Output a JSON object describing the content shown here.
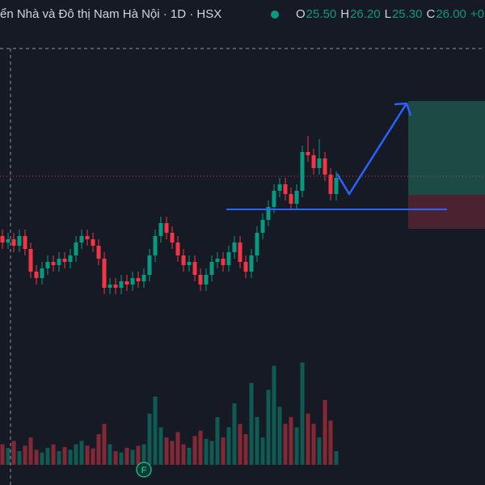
{
  "chart_data": {
    "type": "candlestick",
    "title": "ển Nhà và Đô thị Nam Hà Nội · 1D · HSX",
    "ohlc": [
      {
        "label": "O",
        "value": "25.50"
      },
      {
        "label": "H",
        "value": "26.20"
      },
      {
        "label": "L",
        "value": "25.30"
      },
      {
        "label": "C",
        "value": "26.00"
      }
    ],
    "change": "+0.",
    "up_color": "#089981",
    "down_color": "#f23645",
    "ylim": [
      20.5,
      31.5
    ],
    "volume_lim": [
      0,
      160
    ],
    "open": [
      24.2,
      24.0,
      24.1,
      23.9,
      24.2,
      23.8,
      23.1,
      22.9,
      23.2,
      23.4,
      23.3,
      23.5,
      23.4,
      23.6,
      24.0,
      24.2,
      24.1,
      23.9,
      23.5,
      22.6,
      22.7,
      22.6,
      22.8,
      22.7,
      22.9,
      22.8,
      23.0,
      23.6,
      24.2,
      24.6,
      24.3,
      24.0,
      23.6,
      23.3,
      23.4,
      23.0,
      22.7,
      23.0,
      23.4,
      23.5,
      23.3,
      23.7,
      24.0,
      23.4,
      23.1,
      23.6,
      24.3,
      24.7,
      25.1,
      25.6,
      25.8,
      25.5,
      25.2,
      25.6,
      26.8,
      26.7,
      26.3,
      26.6,
      26.1,
      25.5
    ],
    "high": [
      24.4,
      24.3,
      24.3,
      24.4,
      24.4,
      24.0,
      23.3,
      23.4,
      23.6,
      23.6,
      23.7,
      23.7,
      23.8,
      24.2,
      24.4,
      24.4,
      24.3,
      24.1,
      23.7,
      22.9,
      22.9,
      23.0,
      23.0,
      23.1,
      23.1,
      23.2,
      23.8,
      24.4,
      24.8,
      24.8,
      24.5,
      24.2,
      23.8,
      23.6,
      23.6,
      23.2,
      23.2,
      23.6,
      23.7,
      23.7,
      23.9,
      24.2,
      24.2,
      23.6,
      23.8,
      24.5,
      24.9,
      25.3,
      25.8,
      26.0,
      26.0,
      25.7,
      25.8,
      27.0,
      27.3,
      26.9,
      27.2,
      26.8,
      26.3,
      26.2
    ],
    "low": [
      23.8,
      23.8,
      23.7,
      23.7,
      23.6,
      22.9,
      22.7,
      22.7,
      23.0,
      23.1,
      23.1,
      23.2,
      23.2,
      23.4,
      23.8,
      23.9,
      23.7,
      23.3,
      22.4,
      22.4,
      22.4,
      22.4,
      22.5,
      22.5,
      22.6,
      22.6,
      22.8,
      23.4,
      24.0,
      24.1,
      23.8,
      23.4,
      23.1,
      23.1,
      22.8,
      22.5,
      22.5,
      22.8,
      23.2,
      23.1,
      23.1,
      23.5,
      23.2,
      22.9,
      22.9,
      23.4,
      24.1,
      24.5,
      24.9,
      25.4,
      25.3,
      25.0,
      25.0,
      25.4,
      26.5,
      26.1,
      26.1,
      25.9,
      25.3,
      25.3
    ],
    "close": [
      24.0,
      24.1,
      23.9,
      24.2,
      23.8,
      23.1,
      22.9,
      23.2,
      23.4,
      23.3,
      23.5,
      23.4,
      23.6,
      24.0,
      24.2,
      24.1,
      23.9,
      23.5,
      22.6,
      22.7,
      22.6,
      22.8,
      22.7,
      22.9,
      22.8,
      23.0,
      23.6,
      24.2,
      24.6,
      24.3,
      24.0,
      23.6,
      23.3,
      23.4,
      23.0,
      22.7,
      23.0,
      23.4,
      23.5,
      23.3,
      23.7,
      24.0,
      23.4,
      23.1,
      23.6,
      24.3,
      24.7,
      25.1,
      25.6,
      25.8,
      25.5,
      25.2,
      25.6,
      26.8,
      26.7,
      26.3,
      26.6,
      26.1,
      25.5,
      26.0
    ],
    "volume": [
      30,
      25,
      35,
      20,
      28,
      40,
      22,
      18,
      25,
      30,
      20,
      26,
      22,
      30,
      35,
      28,
      24,
      45,
      60,
      30,
      20,
      18,
      25,
      22,
      28,
      30,
      75,
      100,
      55,
      40,
      35,
      48,
      30,
      25,
      42,
      50,
      38,
      35,
      70,
      40,
      55,
      90,
      60,
      45,
      120,
      70,
      40,
      110,
      145,
      85,
      60,
      70,
      55,
      150,
      75,
      60,
      40,
      95,
      65,
      20
    ]
  }
}
